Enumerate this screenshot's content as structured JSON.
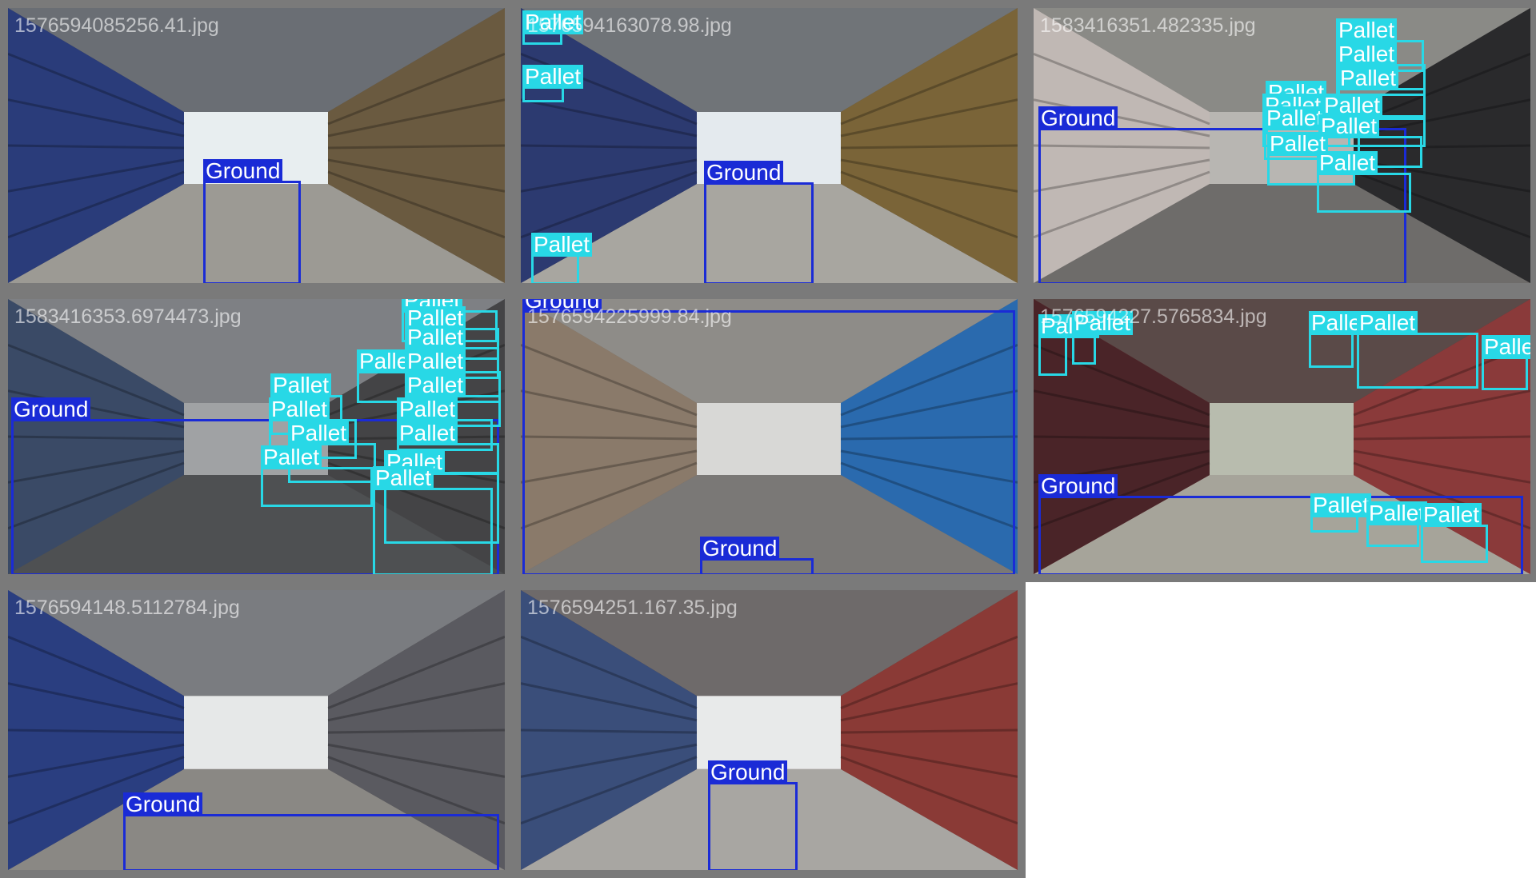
{
  "tiles": [
    {
      "filename": "1576594085256.41.jpg",
      "scene": {
        "top": "#6a6e74",
        "mid": "#5a5048",
        "floor": "#9c9a94",
        "left": "#2a3c7a",
        "right": "#6a5a40",
        "center": "#e8eef0"
      },
      "boxes": [
        {
          "label": "Ground",
          "cls": "ground"
        }
      ]
    },
    {
      "filename": "1576594163078.98.jpg",
      "scene": {
        "top": "#707478",
        "mid": "#5a5044",
        "floor": "#a8a6a0",
        "left": "#2c3a70",
        "right": "#7a6438",
        "center": "#e4eaee"
      },
      "boxes": [
        {
          "label": "Pallet",
          "cls": "pallet"
        },
        {
          "label": "Pallet",
          "cls": "pallet"
        },
        {
          "label": "Pallet",
          "cls": "pallet"
        },
        {
          "label": "Ground",
          "cls": "ground"
        }
      ]
    },
    {
      "filename": "1583416351.482335.jpg",
      "scene": {
        "top": "#8a8a86",
        "mid": "#5e5a58",
        "floor": "#6e6c6a",
        "left": "#c0b8b4",
        "right": "#2a2a2c",
        "center": "#b8b6b2"
      },
      "boxes": [
        {
          "label": "Pallet",
          "cls": "pallet"
        },
        {
          "label": "Pallet",
          "cls": "pallet"
        },
        {
          "label": "Pallet",
          "cls": "pallet"
        },
        {
          "label": "Pallet",
          "cls": "pallet"
        },
        {
          "label": "Pallet",
          "cls": "pallet"
        },
        {
          "label": "Pallet",
          "cls": "pallet"
        },
        {
          "label": "Pallet",
          "cls": "pallet"
        },
        {
          "label": "Pallet",
          "cls": "pallet"
        },
        {
          "label": "Pallet",
          "cls": "pallet"
        },
        {
          "label": "Pallet",
          "cls": "pallet"
        },
        {
          "label": "Ground",
          "cls": "ground"
        }
      ]
    },
    {
      "filename": "1583416353.6974473.jpg",
      "scene": {
        "top": "#7e8084",
        "mid": "#505050",
        "floor": "#4e5052",
        "left": "#3a4a66",
        "right": "#444446",
        "center": "#a0a2a4"
      },
      "boxes": [
        {
          "label": "Pallet",
          "cls": "pallet"
        },
        {
          "label": "Pallet",
          "cls": "pallet"
        },
        {
          "label": "Pallet",
          "cls": "pallet"
        },
        {
          "label": "Pallet",
          "cls": "pallet"
        },
        {
          "label": "Pallet",
          "cls": "pallet"
        },
        {
          "label": "Pallet",
          "cls": "pallet"
        },
        {
          "label": "Pallet",
          "cls": "pallet"
        },
        {
          "label": "Pallet",
          "cls": "pallet"
        },
        {
          "label": "Pallet",
          "cls": "pallet"
        },
        {
          "label": "Pallet",
          "cls": "pallet"
        },
        {
          "label": "Pallet",
          "cls": "pallet"
        },
        {
          "label": "Pallet",
          "cls": "pallet"
        },
        {
          "label": "Pallet",
          "cls": "pallet"
        },
        {
          "label": "Pallet",
          "cls": "pallet"
        },
        {
          "label": "Ground",
          "cls": "ground"
        }
      ]
    },
    {
      "filename": "1576594225999.84.jpg",
      "scene": {
        "top": "#8e8c88",
        "mid": "#6a625a",
        "floor": "#7a7876",
        "left": "#8a7a6a",
        "right": "#2a6aae",
        "center": "#d8d8d6"
      },
      "boxes": [
        {
          "label": "Ground",
          "cls": "ground"
        },
        {
          "label": "Ground",
          "cls": "ground"
        }
      ]
    },
    {
      "filename": "1576594227.5765834.jpg",
      "scene": {
        "top": "#5a4a48",
        "mid": "#6a2a2e",
        "floor": "#a6a49a",
        "left": "#4a2428",
        "right": "#8a3a3a",
        "center": "#b8bcae"
      },
      "boxes": [
        {
          "label": "Pallet",
          "cls": "pallet"
        },
        {
          "label": "Pallet",
          "cls": "pallet"
        },
        {
          "label": "Pallet",
          "cls": "pallet"
        },
        {
          "label": "Pallet",
          "cls": "pallet"
        },
        {
          "label": "Pallet",
          "cls": "pallet"
        },
        {
          "label": "Pallet",
          "cls": "pallet"
        },
        {
          "label": "Pallet",
          "cls": "pallet"
        },
        {
          "label": "Pallet",
          "cls": "pallet"
        },
        {
          "label": "Ground",
          "cls": "ground"
        }
      ]
    },
    {
      "filename": "1576594148.5112784.jpg",
      "scene": {
        "top": "#7a7c80",
        "mid": "#4e4a48",
        "floor": "#8a8884",
        "left": "#2a3e80",
        "right": "#5a5a60",
        "center": "#e6e8e8"
      },
      "boxes": [
        {
          "label": "Ground",
          "cls": "ground"
        }
      ]
    },
    {
      "filename": "1576594251.167.35.jpg",
      "scene": {
        "top": "#6e6a6a",
        "mid": "#5a3a38",
        "floor": "#a8a6a2",
        "left": "#3a4e7a",
        "right": "#8a3a36",
        "center": "#e8eaea"
      },
      "boxes": [
        {
          "label": "Ground",
          "cls": "ground"
        }
      ]
    }
  ]
}
